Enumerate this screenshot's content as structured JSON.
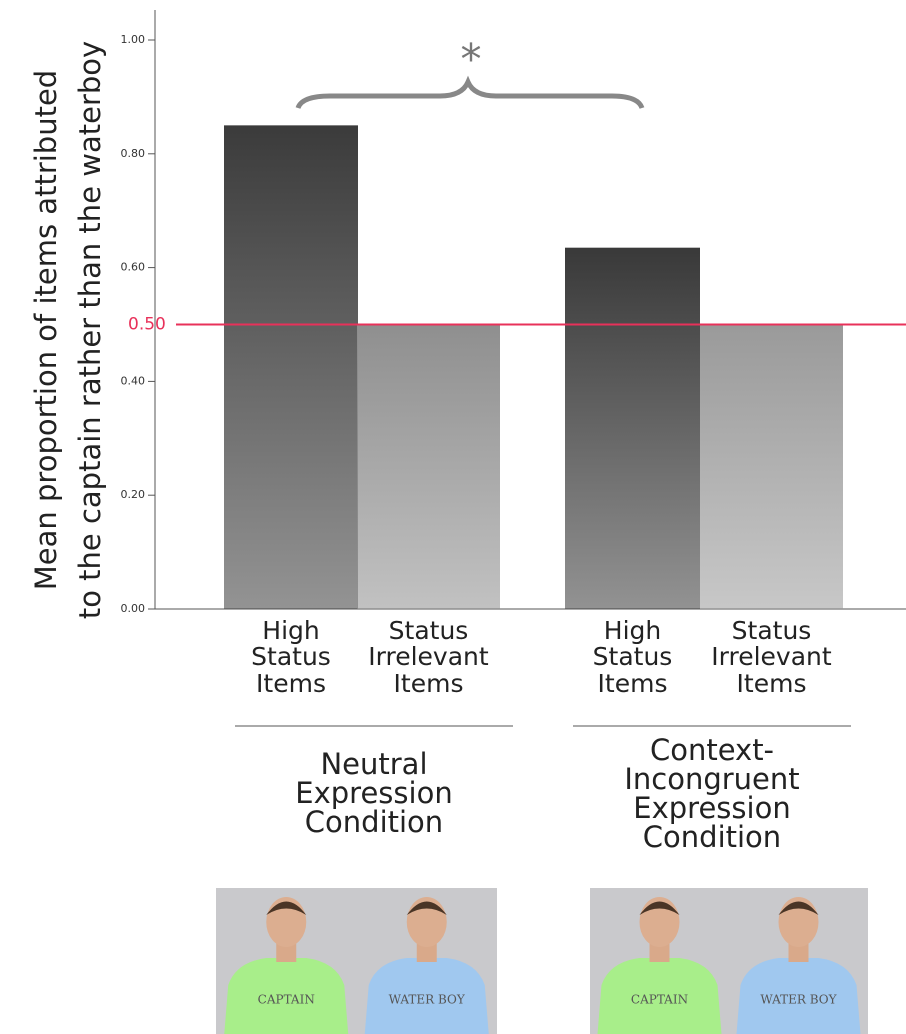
{
  "chart_data": {
    "type": "bar",
    "y_label_lines": [
      "Mean proportion of items attributed",
      "to the captain rather than the waterboy"
    ],
    "categories": [
      "High Status Items",
      "Status Irrelevant Items",
      "High Status Items",
      "Status Irrelevant Items"
    ],
    "values": [
      0.85,
      0.5,
      0.635,
      0.5
    ],
    "colors": [
      "#3b3b3b",
      "#8f8f8f",
      "#393939",
      "#9a9a9a"
    ],
    "groups": [
      "Neutral Expression Condition",
      "Context-Incongruent Expression Condition"
    ],
    "ylim": [
      0,
      1.0
    ],
    "yticks": [
      {
        "value": 0,
        "label": "0.00"
      },
      {
        "value": 0.2,
        "label": "0.20"
      },
      {
        "value": 0.4,
        "label": "0.40"
      },
      {
        "value": 0.6,
        "label": "0.60"
      },
      {
        "value": 0.8,
        "label": "0.80"
      },
      {
        "value": 1.0,
        "label": "1.00"
      }
    ],
    "reference_line": {
      "value": 0.5,
      "label": "0.50",
      "color": "#e8315a"
    },
    "significance": "*",
    "shirt_labels": [
      [
        "CAPTAIN",
        "WATER BOY"
      ],
      [
        "CAPTAIN",
        "WATER BOY"
      ]
    ]
  }
}
